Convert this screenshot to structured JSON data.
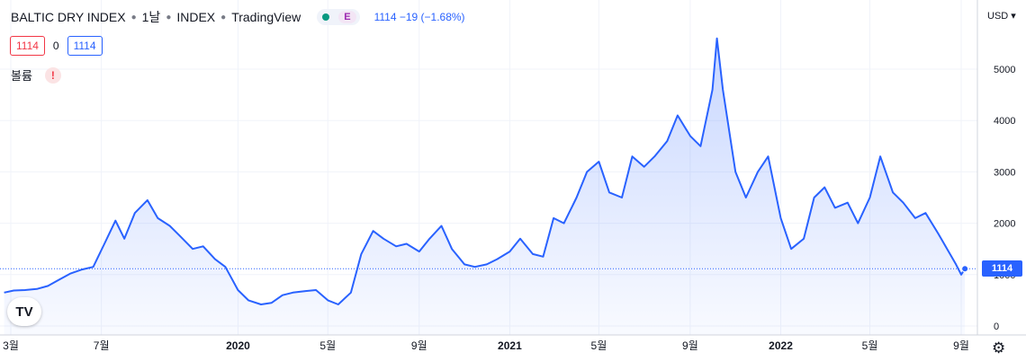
{
  "header": {
    "symbol": "BALTIC DRY INDEX",
    "interval": "1날",
    "exchange": "INDEX",
    "provider": "TradingView",
    "status_badge": "E",
    "last_info": "1114 −19 (−1.68%)"
  },
  "ohlc": {
    "box1": "1114",
    "mid": "0",
    "box2": "1114"
  },
  "volume": {
    "label": "볼륨",
    "warning": "!"
  },
  "price_axis": {
    "currency": "USD",
    "last_price_label": "1114"
  },
  "logo": "TV",
  "settings_icon": "gear-icon",
  "colors": {
    "line": "#2962ff",
    "up": "#f23645",
    "accent": "#2962ff",
    "status_green": "#089981"
  },
  "chart_data": {
    "type": "area",
    "title": "BALTIC DRY INDEX",
    "xlabel": "",
    "ylabel": "",
    "ylim": [
      0,
      5800
    ],
    "yticks": [
      0,
      1000,
      2000,
      3000,
      4000,
      5000
    ],
    "ytick_labels": [
      "0",
      "1000",
      "2000",
      "3000",
      "4000",
      "5000"
    ],
    "xtick_labels": [
      "3월",
      "7월",
      "2020",
      "5월",
      "9월",
      "2021",
      "5월",
      "9월",
      "2022",
      "5월",
      "9월"
    ],
    "xtick_dates": [
      "2019-03-01",
      "2019-07-01",
      "2020-01-01",
      "2020-05-01",
      "2020-09-01",
      "2021-01-01",
      "2021-05-01",
      "2021-09-01",
      "2022-01-01",
      "2022-05-01",
      "2022-09-01"
    ],
    "last_value": 1114,
    "grid": true,
    "series": [
      {
        "x": [
          "2019-02-20",
          "2019-03-05",
          "2019-03-20",
          "2019-04-05",
          "2019-04-20",
          "2019-05-05",
          "2019-05-20",
          "2019-06-05",
          "2019-06-20",
          "2019-07-05",
          "2019-07-20",
          "2019-08-01",
          "2019-08-15",
          "2019-09-01",
          "2019-09-15",
          "2019-10-01",
          "2019-10-15",
          "2019-11-01",
          "2019-11-15",
          "2019-12-01",
          "2019-12-15",
          "2020-01-01",
          "2020-01-15",
          "2020-02-01",
          "2020-02-15",
          "2020-03-01",
          "2020-03-15",
          "2020-04-01",
          "2020-04-15",
          "2020-05-01",
          "2020-05-15",
          "2020-06-01",
          "2020-06-15",
          "2020-07-01",
          "2020-07-15",
          "2020-08-01",
          "2020-08-15",
          "2020-09-01",
          "2020-09-15",
          "2020-10-01",
          "2020-10-15",
          "2020-11-01",
          "2020-11-15",
          "2020-12-01",
          "2020-12-15",
          "2021-01-01",
          "2021-01-15",
          "2021-02-01",
          "2021-02-15",
          "2021-03-01",
          "2021-03-15",
          "2021-04-01",
          "2021-04-15",
          "2021-05-01",
          "2021-05-15",
          "2021-06-01",
          "2021-06-15",
          "2021-07-01",
          "2021-07-15",
          "2021-08-01",
          "2021-08-15",
          "2021-09-01",
          "2021-09-15",
          "2021-10-01",
          "2021-10-07",
          "2021-10-15",
          "2021-11-01",
          "2021-11-15",
          "2021-12-01",
          "2021-12-15",
          "2022-01-01",
          "2022-01-15",
          "2022-02-01",
          "2022-02-15",
          "2022-03-01",
          "2022-03-15",
          "2022-04-01",
          "2022-04-15",
          "2022-05-01",
          "2022-05-15",
          "2022-06-01",
          "2022-06-15",
          "2022-07-01",
          "2022-07-15",
          "2022-08-01",
          "2022-08-15",
          "2022-08-25",
          "2022-09-01",
          "2022-09-06"
        ],
        "y": [
          650,
          690,
          700,
          720,
          780,
          900,
          1020,
          1100,
          1150,
          1600,
          2050,
          1700,
          2200,
          2450,
          2100,
          1950,
          1750,
          1500,
          1550,
          1300,
          1150,
          700,
          500,
          420,
          450,
          600,
          650,
          680,
          700,
          500,
          420,
          650,
          1400,
          1850,
          1700,
          1550,
          1600,
          1450,
          1700,
          1950,
          1500,
          1200,
          1150,
          1200,
          1300,
          1450,
          1700,
          1400,
          1350,
          2100,
          2000,
          2500,
          3000,
          3200,
          2600,
          2500,
          3300,
          3100,
          3300,
          3600,
          4100,
          3700,
          3500,
          4600,
          5600,
          4600,
          3000,
          2500,
          3000,
          3300,
          2100,
          1500,
          1700,
          2500,
          2700,
          2300,
          2400,
          2000,
          2500,
          3300,
          2600,
          2400,
          2100,
          2200,
          1800,
          1450,
          1200,
          1000,
          1114
        ]
      }
    ]
  }
}
